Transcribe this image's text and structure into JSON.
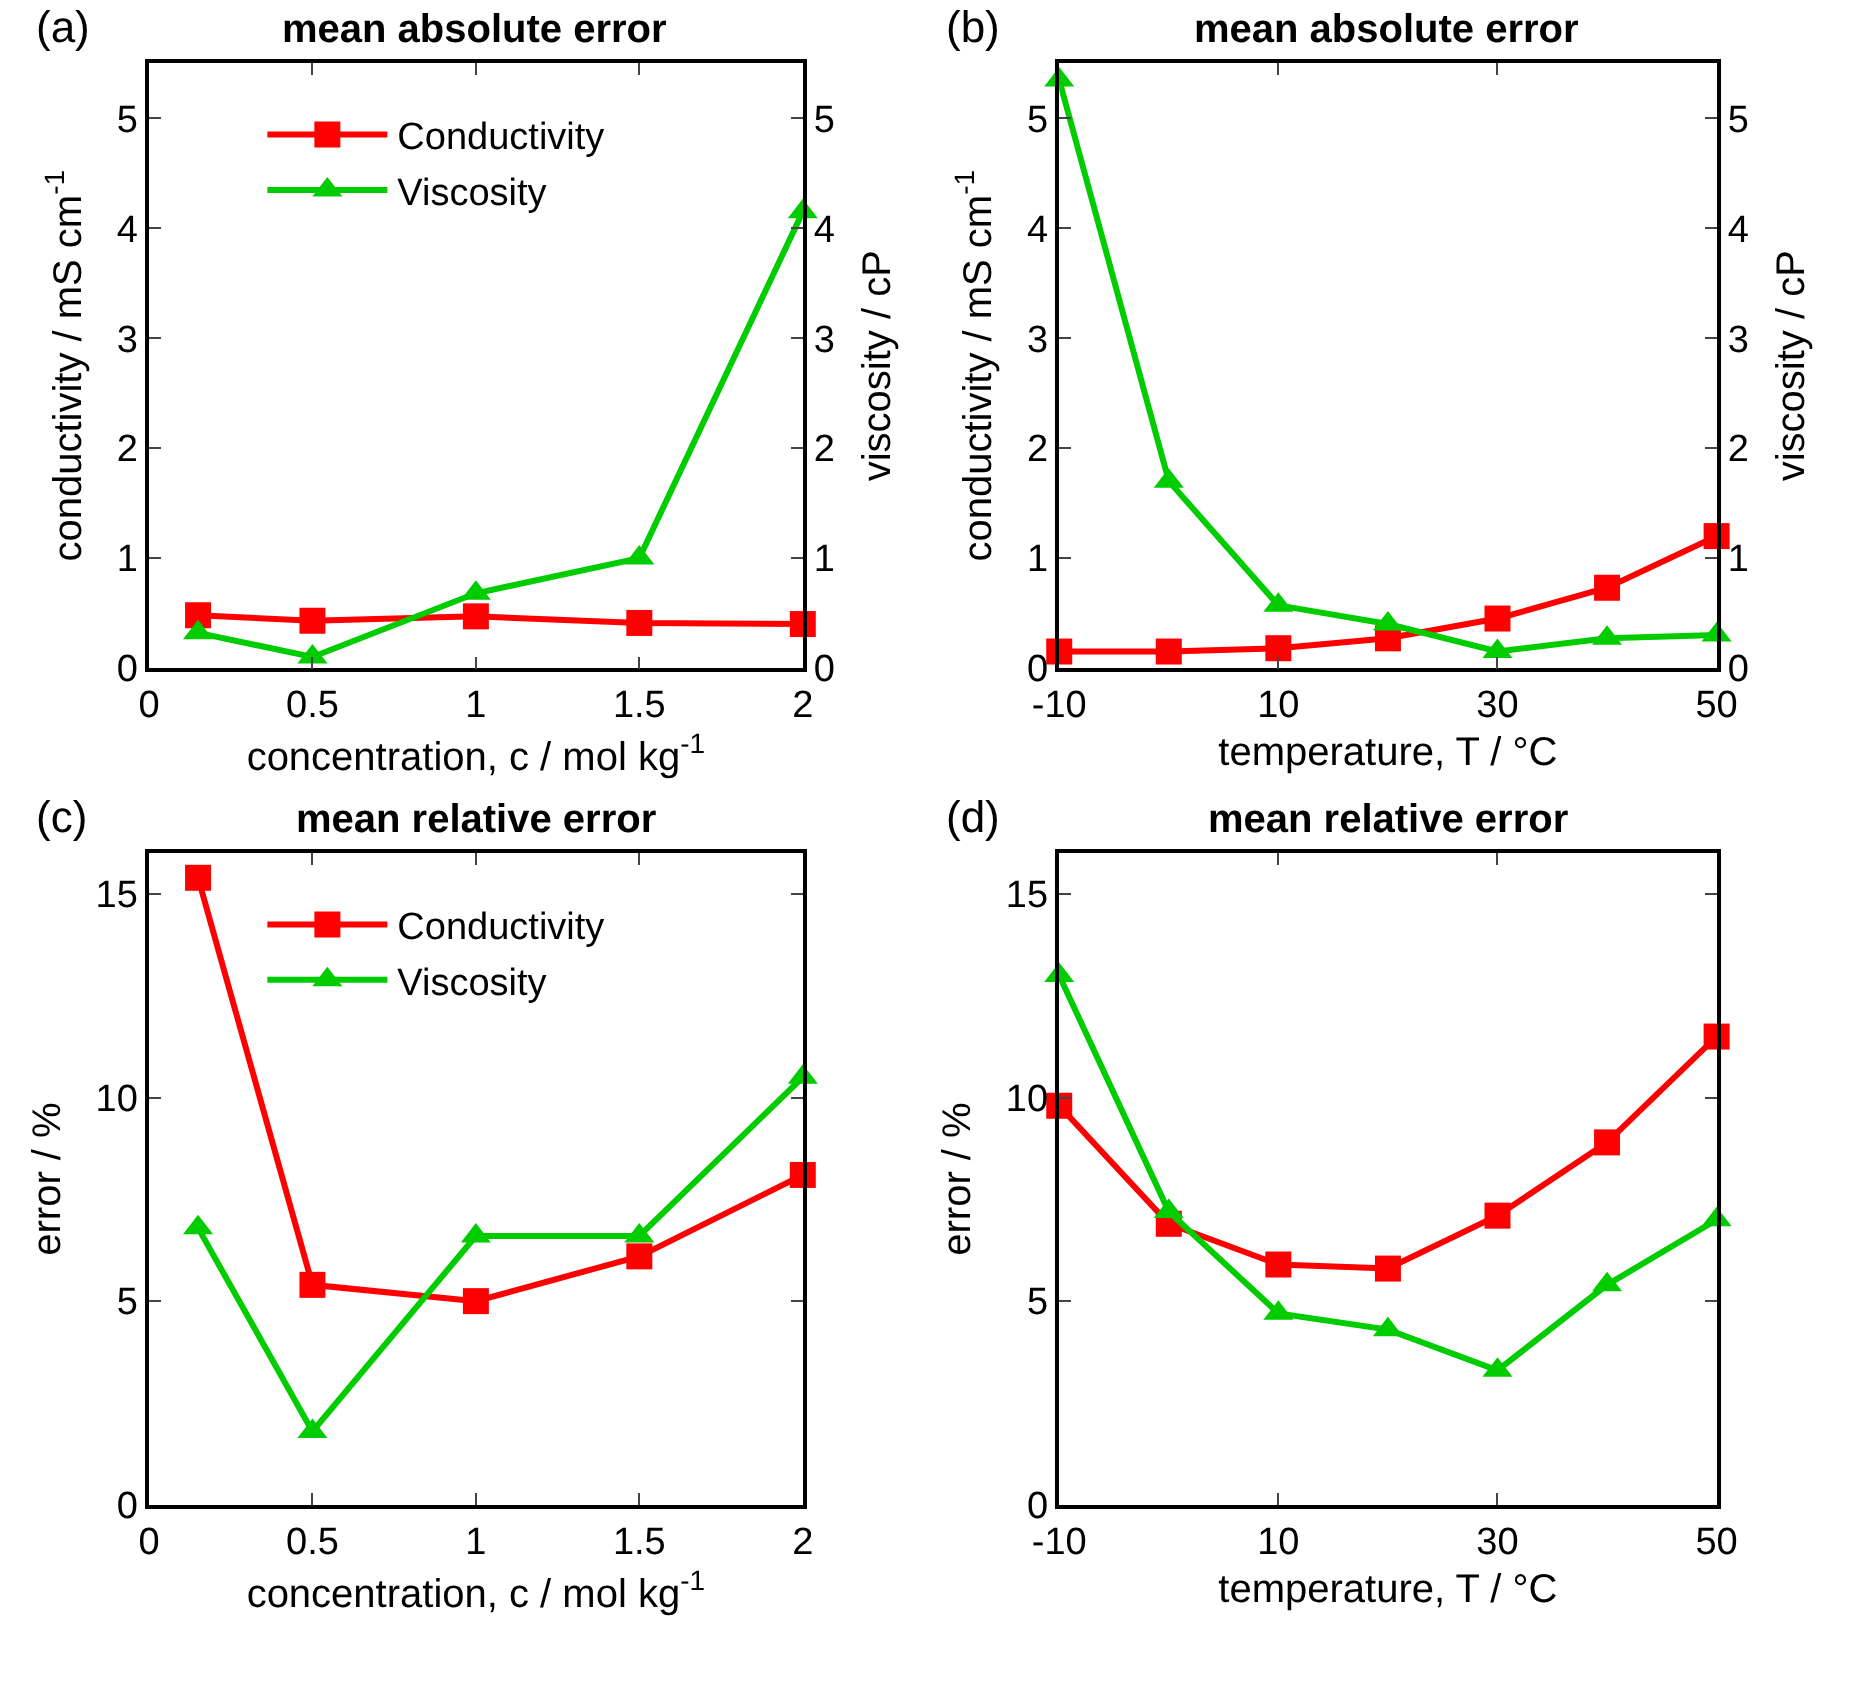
{
  "chart_data": [
    {
      "type": "line",
      "title": "mean absolute error",
      "annotations": [
        "(a)"
      ],
      "xlabel": "concentration, c / mol kg$^{-1}$",
      "ylabel": "conductivity / mS cm$^{-1}$",
      "y2label": "viscosity / cP",
      "x": [
        0.15,
        0.5,
        1,
        1.5,
        2
      ],
      "xlim": [
        0,
        2
      ],
      "xticks": [
        0,
        0.5,
        1,
        1.5,
        2
      ],
      "ylim": [
        0,
        5.5
      ],
      "yticks": [
        0,
        1,
        2,
        3,
        4,
        5
      ],
      "y2lim": [
        0,
        5.5
      ],
      "y2ticks": [
        0,
        1,
        2,
        3,
        4,
        5
      ],
      "legend": "top left",
      "line_style": "solid",
      "series": [
        {
          "name": "Conductivity",
          "color": "#ff0000",
          "marker": "square",
          "values": [
            0.48,
            0.43,
            0.47,
            0.41,
            0.4
          ]
        },
        {
          "name": "Viscosity",
          "color": "#00cc00",
          "marker": "triangle",
          "axis": "y2",
          "values": [
            0.32,
            0.1,
            0.68,
            1.0,
            4.15
          ]
        }
      ]
    },
    {
      "type": "line",
      "title": "mean absolute error",
      "annotations": [
        "(b)"
      ],
      "xlabel": "temperature, T / °C",
      "ylabel": "conductivity / mS cm$^{-1}$",
      "y2label": "viscosity / cP",
      "x": [
        -10,
        0,
        10,
        20,
        30,
        40,
        50
      ],
      "xlim": [
        -10,
        50
      ],
      "xticks": [
        -10,
        10,
        30,
        50
      ],
      "ylim": [
        0,
        5.5
      ],
      "yticks": [
        0,
        1,
        2,
        3,
        4,
        5
      ],
      "y2lim": [
        0,
        5.5
      ],
      "y2ticks": [
        0,
        1,
        2,
        3,
        4,
        5
      ],
      "legend": false,
      "line_style": "solid",
      "series": [
        {
          "color": "#ff0000",
          "marker": "square",
          "values": [
            0.15,
            0.15,
            0.18,
            0.27,
            0.45,
            0.73,
            1.2
          ]
        },
        {
          "color": "#00cc00",
          "marker": "triangle",
          "axis": "y2",
          "values": [
            5.35,
            1.7,
            0.57,
            0.4,
            0.15,
            0.27,
            0.3
          ]
        }
      ]
    },
    {
      "type": "line",
      "title": "mean relative error",
      "annotations": [
        "(c)"
      ],
      "xlabel": "concentration, c / mol kg$^{-1}$",
      "ylabel": "error / %",
      "x": [
        0.15,
        0.5,
        1,
        1.5,
        2
      ],
      "xlim": [
        0,
        2
      ],
      "xticks": [
        0,
        0.5,
        1,
        1.5,
        2
      ],
      "ylim": [
        0,
        16
      ],
      "yticks": [
        0,
        5,
        10,
        15
      ],
      "legend": "top left",
      "line_style": "solid",
      "series": [
        {
          "name": "Conductivity",
          "color": "#ff0000",
          "marker": "square",
          "values": [
            15.4,
            5.4,
            5.0,
            6.1,
            8.1
          ]
        },
        {
          "name": "Viscosity",
          "color": "#00cc00",
          "marker": "triangle",
          "values": [
            6.8,
            1.8,
            6.6,
            6.6,
            10.5
          ]
        }
      ]
    },
    {
      "type": "line",
      "title": "mean relative error",
      "annotations": [
        "(d)"
      ],
      "xlabel": "temperature, T / °C",
      "ylabel": "error / %",
      "x": [
        -10,
        0,
        10,
        20,
        30,
        40,
        50
      ],
      "xlim": [
        -10,
        50
      ],
      "xticks": [
        -10,
        10,
        30,
        50
      ],
      "ylim": [
        0,
        16
      ],
      "yticks": [
        0,
        5,
        10,
        15
      ],
      "legend": false,
      "line_style": "solid",
      "series": [
        {
          "color": "#ff0000",
          "marker": "square",
          "values": [
            9.8,
            6.9,
            5.9,
            5.8,
            7.1,
            8.9,
            11.5
          ]
        },
        {
          "color": "#00cc00",
          "marker": "triangle",
          "values": [
            13.0,
            7.2,
            4.7,
            4.3,
            3.3,
            5.4,
            7.0
          ]
        }
      ]
    }
  ]
}
